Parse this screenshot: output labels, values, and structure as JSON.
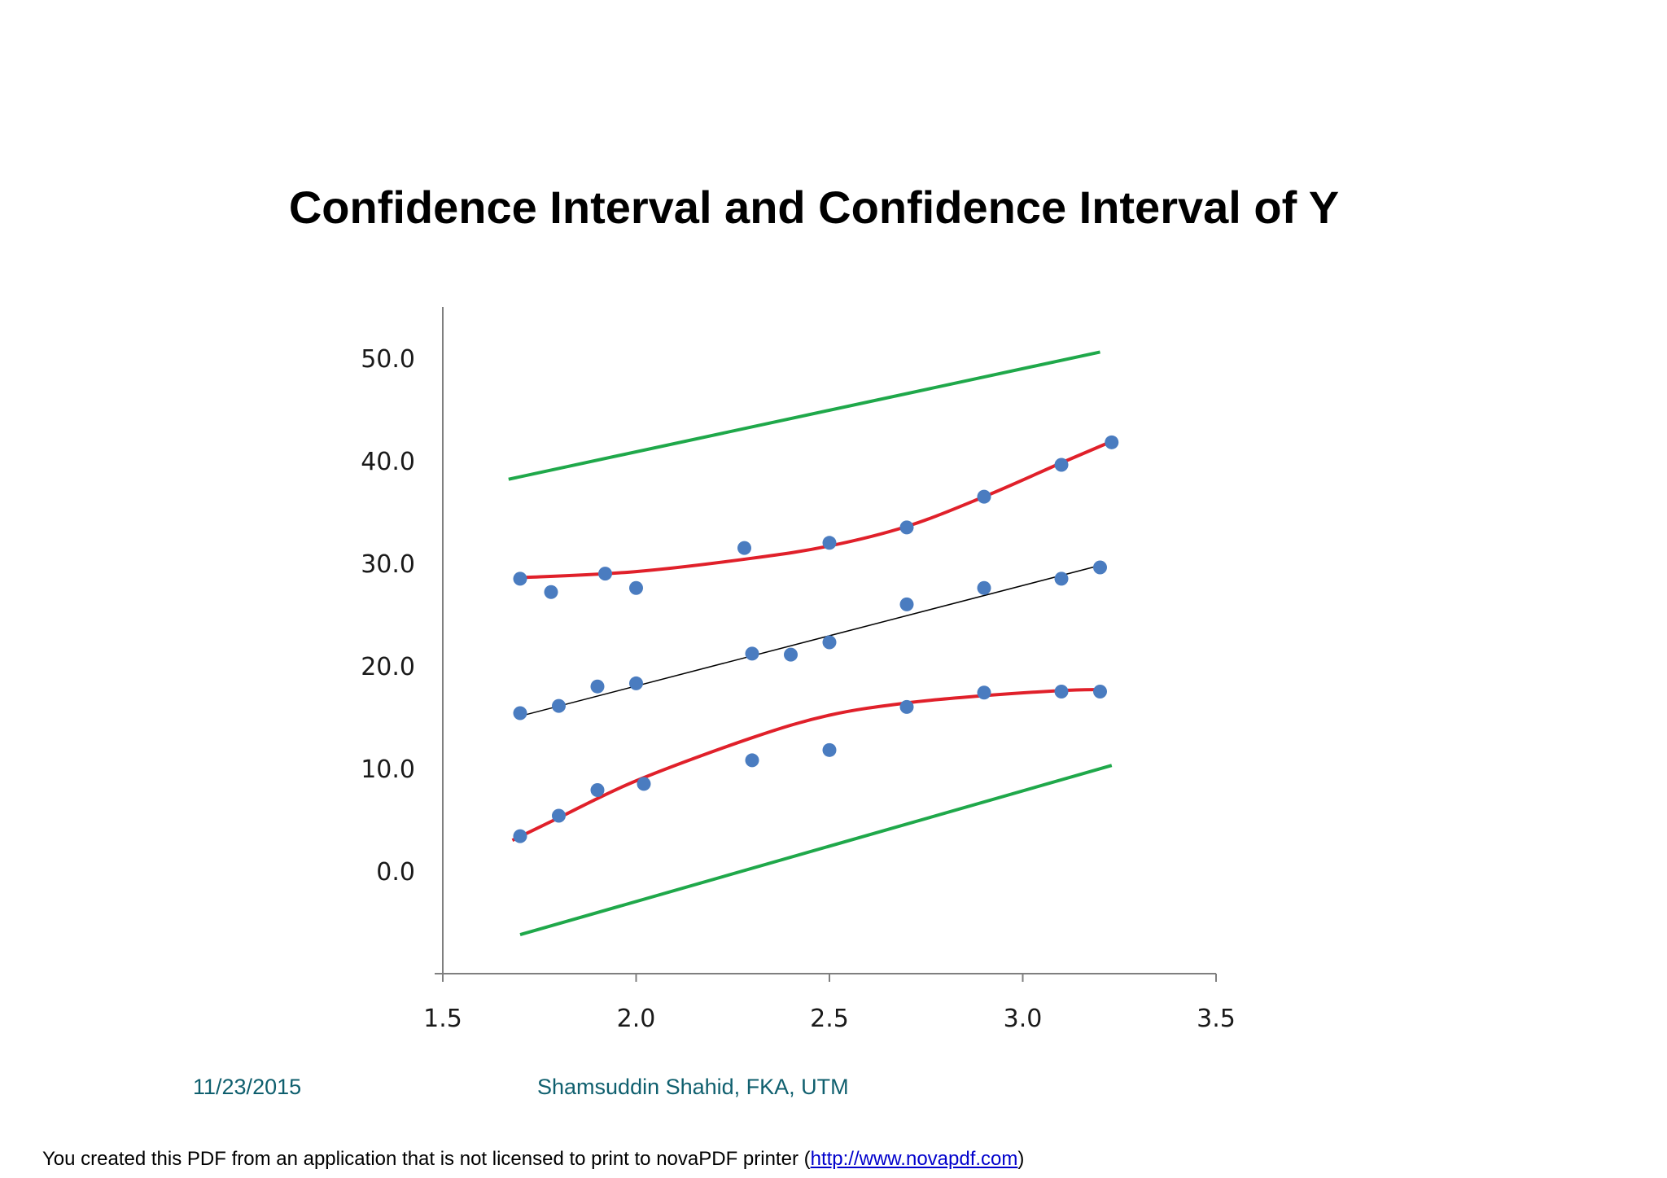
{
  "slide": {
    "title": "Confidence Interval and Confidence Interval of Y",
    "footer_date": "11/23/2015",
    "footer_author": "Shamsuddin Shahid, FKA, UTM"
  },
  "watermark": {
    "text_before": "You created this PDF from an application that is not licensed to print to novaPDF printer (",
    "link_text": "http://www.novapdf.com",
    "text_after": ")"
  },
  "colors": {
    "points": "#4a7cc0",
    "regression_line": "#000000",
    "confidence_band": "#e0202a",
    "prediction_band": "#1fa84a",
    "axis": "#7f7f7f"
  },
  "chart_data": {
    "type": "scatter",
    "title": "",
    "xlabel": "",
    "ylabel": "",
    "xlim": [
      1.5,
      3.5
    ],
    "ylim": [
      -10,
      55
    ],
    "xticks": [
      "1.5",
      "2.0",
      "2.5",
      "3.0",
      "3.5"
    ],
    "xtick_values": [
      1.5,
      2.0,
      2.5,
      3.0,
      3.5
    ],
    "yticks": [
      "0.0",
      "10.0",
      "20.0",
      "30.0",
      "40.0",
      "50.0"
    ],
    "ytick_values": [
      0,
      10,
      20,
      30,
      40,
      50
    ],
    "grid": false,
    "points": [
      [
        1.7,
        28.5
      ],
      [
        1.78,
        27.2
      ],
      [
        1.92,
        29.0
      ],
      [
        2.0,
        27.6
      ],
      [
        2.28,
        31.5
      ],
      [
        2.5,
        32.0
      ],
      [
        2.7,
        33.5
      ],
      [
        2.9,
        36.5
      ],
      [
        3.1,
        39.6
      ],
      [
        3.23,
        41.8
      ],
      [
        1.7,
        15.4
      ],
      [
        1.8,
        16.1
      ],
      [
        1.9,
        18.0
      ],
      [
        2.0,
        18.3
      ],
      [
        2.3,
        21.2
      ],
      [
        2.4,
        21.1
      ],
      [
        2.5,
        22.3
      ],
      [
        2.7,
        26.0
      ],
      [
        2.9,
        27.6
      ],
      [
        3.1,
        28.5
      ],
      [
        3.2,
        29.6
      ],
      [
        1.7,
        3.4
      ],
      [
        1.8,
        5.4
      ],
      [
        1.9,
        7.9
      ],
      [
        2.02,
        8.5
      ],
      [
        2.3,
        10.8
      ],
      [
        2.5,
        11.8
      ],
      [
        2.7,
        16.0
      ],
      [
        2.9,
        17.4
      ],
      [
        3.1,
        17.5
      ],
      [
        3.2,
        17.5
      ]
    ],
    "regression_line": [
      [
        1.7,
        15.1
      ],
      [
        3.2,
        29.8
      ]
    ],
    "upper_confidence": [
      [
        1.7,
        28.6
      ],
      [
        2.0,
        29.2
      ],
      [
        2.3,
        30.5
      ],
      [
        2.5,
        31.7
      ],
      [
        2.7,
        33.6
      ],
      [
        2.9,
        36.5
      ],
      [
        3.1,
        39.8
      ],
      [
        3.23,
        41.9
      ]
    ],
    "lower_confidence": [
      [
        1.68,
        3.0
      ],
      [
        1.8,
        5.2
      ],
      [
        2.0,
        8.8
      ],
      [
        2.3,
        13.0
      ],
      [
        2.5,
        15.2
      ],
      [
        2.7,
        16.4
      ],
      [
        2.9,
        17.1
      ],
      [
        3.1,
        17.6
      ],
      [
        3.2,
        17.7
      ]
    ],
    "upper_prediction": [
      [
        1.67,
        38.2
      ],
      [
        3.2,
        50.6
      ]
    ],
    "lower_prediction": [
      [
        1.7,
        -6.2
      ],
      [
        3.23,
        10.3
      ]
    ]
  }
}
